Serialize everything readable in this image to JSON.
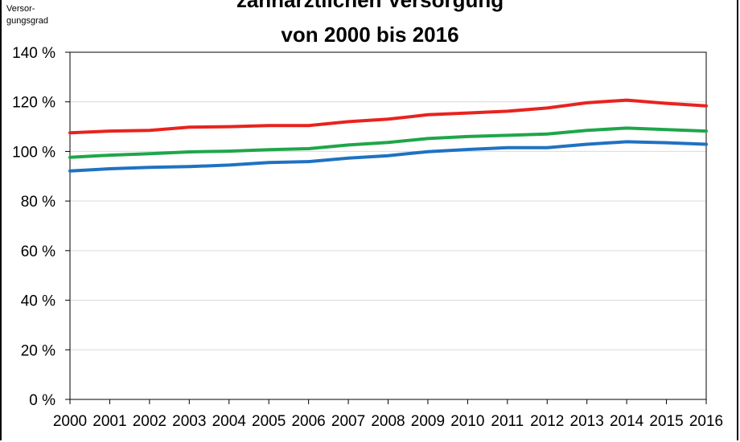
{
  "chart_data": {
    "type": "line",
    "title_line1": "zahnärztlichen Versorgung",
    "title_line2": "von 2000 bis 2016",
    "ylabel_line1": "Versor-",
    "ylabel_line2": "gungsgrad",
    "xlabel": "",
    "ylim": [
      0,
      140
    ],
    "yticks": [
      "0 %",
      "20 %",
      "40 %",
      "60 %",
      "80 %",
      "100 %",
      "120 %",
      "140 %"
    ],
    "ytick_values": [
      0,
      20,
      40,
      60,
      80,
      100,
      120,
      140
    ],
    "categories": [
      "2000",
      "2001",
      "2002",
      "2003",
      "2004",
      "2005",
      "2006",
      "2007",
      "2008",
      "2009",
      "2010",
      "2011",
      "2012",
      "2013",
      "2014",
      "2015",
      "2016"
    ],
    "grid": true,
    "series": [
      {
        "color": "#e8231e",
        "values": [
          107.5,
          108.2,
          108.5,
          109.8,
          110.0,
          110.4,
          110.4,
          112.0,
          113.0,
          114.8,
          115.5,
          116.2,
          117.5,
          119.6,
          120.7,
          119.4,
          118.4
        ]
      },
      {
        "color": "#1fa64a",
        "values": [
          97.6,
          98.5,
          99.1,
          99.8,
          100.1,
          100.7,
          101.1,
          102.6,
          103.6,
          105.2,
          106.0,
          106.5,
          107.0,
          108.5,
          109.4,
          108.8,
          108.2
        ]
      },
      {
        "color": "#1f72c2",
        "values": [
          92.1,
          93.0,
          93.6,
          93.9,
          94.5,
          95.5,
          95.9,
          97.3,
          98.3,
          99.9,
          100.8,
          101.5,
          101.5,
          102.9,
          103.9,
          103.5,
          102.9
        ]
      }
    ]
  }
}
